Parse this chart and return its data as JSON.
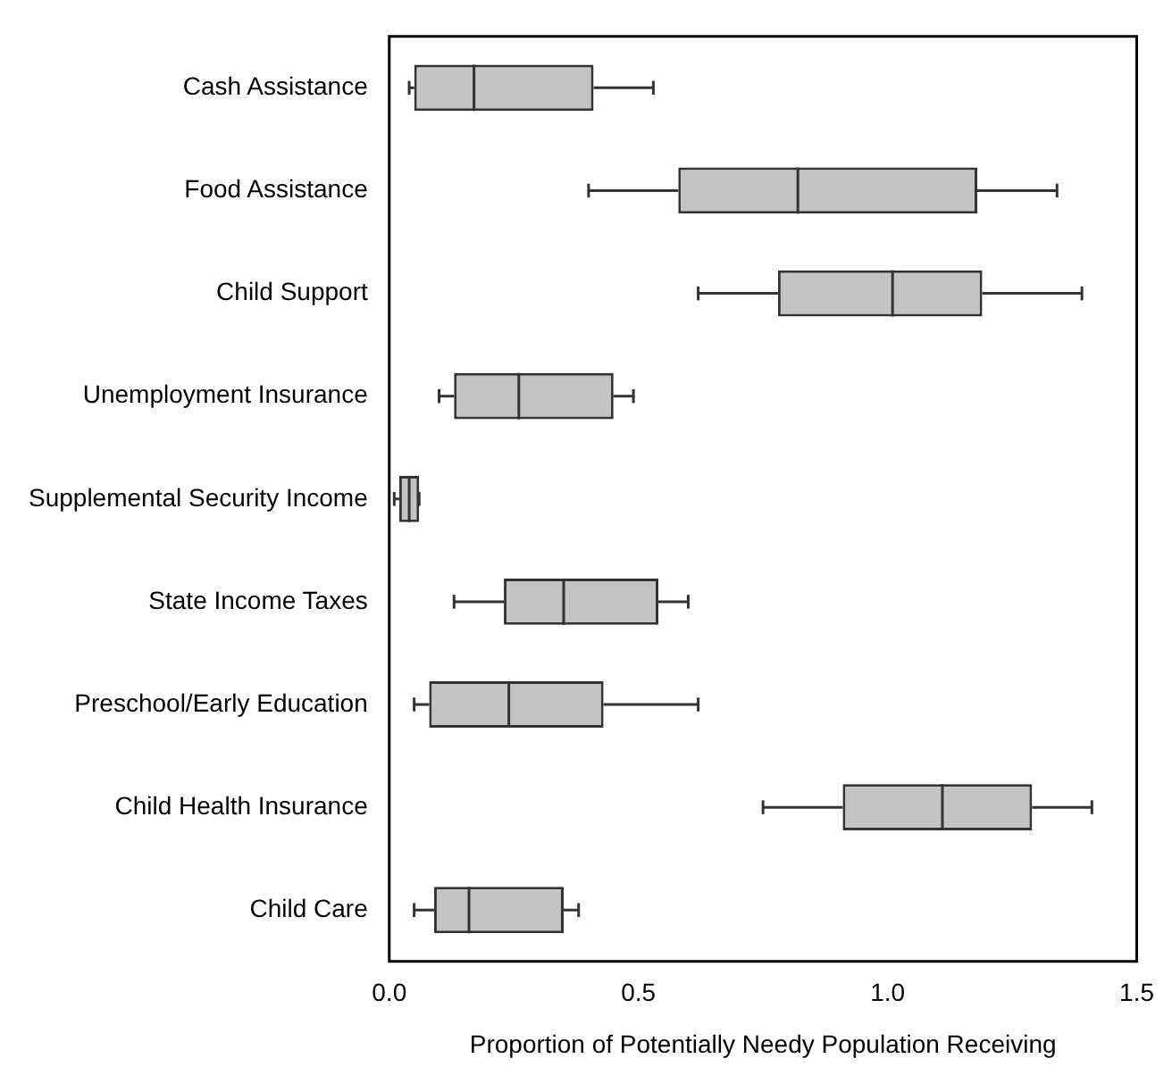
{
  "chart_data": {
    "type": "box",
    "orientation": "horizontal",
    "xlabel": "Proportion of Potentially Needy Population Receiving",
    "categories": [
      "Cash Assistance",
      "Food Assistance",
      "Child Support",
      "Unemployment Insurance",
      "Supplemental Security Income",
      "State Income Taxes",
      "Preschool/Early Education",
      "Child Health Insurance",
      "Child Care"
    ],
    "boxes": [
      {
        "low": 0.04,
        "q1": 0.05,
        "median": 0.17,
        "q3": 0.41,
        "high": 0.53
      },
      {
        "low": 0.4,
        "q1": 0.58,
        "median": 0.82,
        "q3": 1.18,
        "high": 1.34
      },
      {
        "low": 0.62,
        "q1": 0.78,
        "median": 1.01,
        "q3": 1.19,
        "high": 1.39
      },
      {
        "low": 0.1,
        "q1": 0.13,
        "median": 0.26,
        "q3": 0.45,
        "high": 0.49
      },
      {
        "low": 0.01,
        "q1": 0.02,
        "median": 0.04,
        "q3": 0.06,
        "high": 0.06
      },
      {
        "low": 0.13,
        "q1": 0.23,
        "median": 0.35,
        "q3": 0.54,
        "high": 0.6
      },
      {
        "low": 0.05,
        "q1": 0.08,
        "median": 0.24,
        "q3": 0.43,
        "high": 0.62
      },
      {
        "low": 0.75,
        "q1": 0.91,
        "median": 1.11,
        "q3": 1.29,
        "high": 1.41
      },
      {
        "low": 0.05,
        "q1": 0.09,
        "median": 0.16,
        "q3": 0.35,
        "high": 0.38
      }
    ],
    "xlim": [
      0,
      1.5
    ],
    "xticks": [
      {
        "value": 0,
        "label": "0.0"
      },
      0.5,
      {
        "value": 1,
        "label": "1.0"
      },
      1.5
    ],
    "grid": false
  }
}
